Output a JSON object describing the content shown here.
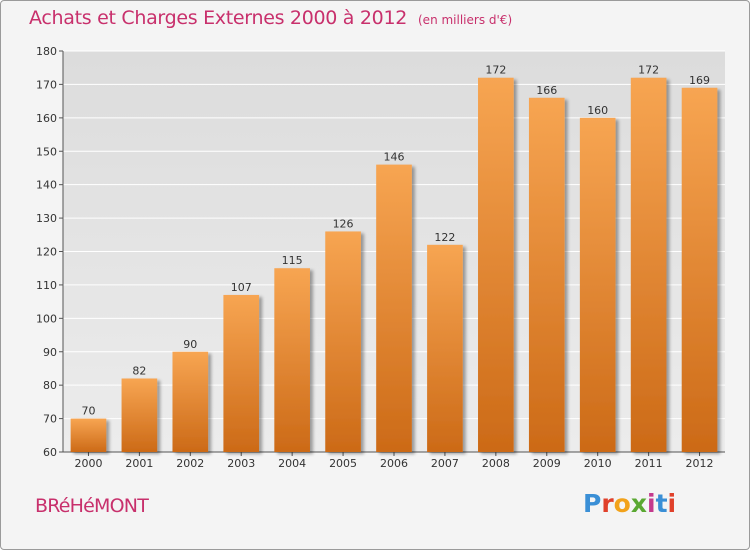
{
  "header": {
    "title": "Achats et Charges Externes 2000 à 2012",
    "unit": "(en milliers d'€)"
  },
  "footer": {
    "commune": "BRéHéMONT",
    "logo_text": "Proxiti"
  },
  "colors": {
    "title": "#c8306c",
    "bar_light": "#f7a552",
    "bar_dark": "#cc6a17",
    "grid": "#ffffff",
    "plot_bg": "#e6e6e6"
  },
  "chart_data": {
    "type": "bar",
    "categories": [
      "2000",
      "2001",
      "2002",
      "2003",
      "2004",
      "2005",
      "2006",
      "2007",
      "2008",
      "2009",
      "2010",
      "2011",
      "2012"
    ],
    "values": [
      70,
      82,
      90,
      107,
      115,
      126,
      146,
      122,
      172,
      166,
      160,
      172,
      169
    ],
    "ylim": [
      60,
      180
    ],
    "yticks": [
      60,
      70,
      80,
      90,
      100,
      110,
      120,
      130,
      140,
      150,
      160,
      170,
      180
    ],
    "grid": true,
    "legend": "none"
  }
}
